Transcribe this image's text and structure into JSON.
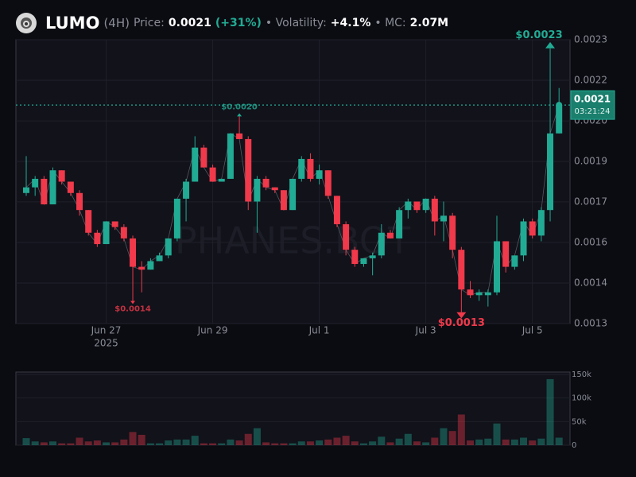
{
  "header": {
    "title": "LUMO",
    "timeframe": "(4H)",
    "price_label": "Price:",
    "price": "0.0021",
    "change": "(+31%)",
    "volatility_label": "• Volatility:",
    "volatility": "+4.1%",
    "mc_label": "• MC:",
    "mc": "2.07M"
  },
  "watermark": "PHANES.BOT",
  "chart_data": [
    {
      "type": "candlestick",
      "up_color": "#22ab94",
      "down_color": "#f0394a",
      "grid": true,
      "categories": [
        null,
        null,
        null,
        null,
        null,
        null,
        null,
        null,
        null,
        "Jun 27",
        null,
        null,
        null,
        null,
        null,
        null,
        null,
        null,
        null,
        null,
        null,
        "Jun 29",
        null,
        null,
        null,
        null,
        null,
        null,
        null,
        null,
        null,
        null,
        null,
        "Jul 1",
        null,
        null,
        null,
        null,
        null,
        null,
        null,
        null,
        null,
        null,
        null,
        "Jul 3",
        null,
        null,
        null,
        null,
        null,
        null,
        null,
        null,
        null,
        null,
        null,
        "Jul 5",
        null,
        null,
        null
      ],
      "year": "2025",
      "open": [
        0.00176,
        0.00178,
        0.00181,
        0.00172,
        0.00184,
        0.0018,
        0.00176,
        0.0017,
        0.00162,
        0.00158,
        0.00166,
        0.00164,
        0.0016,
        0.0015,
        0.00149,
        0.00152,
        0.00154,
        0.0016,
        0.00174,
        0.0018,
        0.00192,
        0.00185,
        0.0018,
        0.00181,
        0.00197,
        0.00195,
        0.00173,
        0.00181,
        0.00178,
        0.00177,
        0.0017,
        0.00181,
        0.00188,
        0.00181,
        0.00184,
        0.00175,
        0.00165,
        0.00156,
        0.00151,
        0.00153,
        0.00154,
        0.00162,
        0.0016,
        0.0017,
        0.00173,
        0.0017,
        0.00174,
        0.00166,
        0.00168,
        0.00156,
        0.00142,
        0.0014,
        0.0014,
        0.00141,
        0.00159,
        0.0015,
        0.00154,
        0.00166,
        0.00161,
        0.0017,
        0.00197
      ],
      "high": [
        0.00189,
        0.00182,
        0.00182,
        0.00185,
        0.00184,
        0.0018,
        0.00177,
        0.0017,
        0.00163,
        0.00166,
        0.00166,
        0.00165,
        0.00161,
        0.00152,
        0.00153,
        0.00155,
        0.0016,
        0.00174,
        0.00181,
        0.00196,
        0.00193,
        0.00186,
        0.00181,
        0.00197,
        0.00203,
        0.00196,
        0.00182,
        0.00182,
        0.00178,
        0.00177,
        0.00181,
        0.00189,
        0.0019,
        0.00186,
        0.00184,
        0.00175,
        0.00166,
        0.00157,
        0.00153,
        0.00155,
        0.00165,
        0.00163,
        0.00171,
        0.00174,
        0.00173,
        0.00174,
        0.00175,
        0.00173,
        0.00169,
        0.00157,
        0.00145,
        0.00142,
        0.00142,
        0.00168,
        0.00159,
        0.00154,
        0.00167,
        0.00167,
        0.00171,
        0.00227,
        0.00213
      ],
      "low": [
        0.00175,
        0.00175,
        0.00172,
        0.00172,
        0.00179,
        0.00175,
        0.00168,
        0.00161,
        0.00157,
        0.00158,
        0.00163,
        0.00159,
        0.00138,
        0.00141,
        0.00149,
        0.00152,
        0.00153,
        0.00159,
        0.00166,
        0.0018,
        0.00185,
        0.0018,
        0.0018,
        0.00181,
        0.00195,
        0.0017,
        0.00162,
        0.00177,
        0.00176,
        0.0017,
        0.0017,
        0.0018,
        0.0018,
        0.00179,
        0.00174,
        0.00164,
        0.00154,
        0.0015,
        0.0015,
        0.00147,
        0.00153,
        0.0016,
        0.0016,
        0.00167,
        0.00169,
        0.00169,
        0.00161,
        0.00159,
        0.00153,
        0.00134,
        0.00139,
        0.00138,
        0.00136,
        0.0014,
        0.00148,
        0.00149,
        0.00152,
        0.0016,
        0.00159,
        0.00166,
        0.00197
      ],
      "close": [
        0.00178,
        0.00181,
        0.00172,
        0.00184,
        0.0018,
        0.00176,
        0.0017,
        0.00162,
        0.00158,
        0.00166,
        0.00164,
        0.0016,
        0.0015,
        0.00149,
        0.00152,
        0.00154,
        0.0016,
        0.00174,
        0.0018,
        0.00192,
        0.00185,
        0.0018,
        0.00181,
        0.00197,
        0.00195,
        0.00173,
        0.00181,
        0.00178,
        0.00177,
        0.0017,
        0.00181,
        0.00188,
        0.00181,
        0.00184,
        0.00175,
        0.00165,
        0.00156,
        0.00151,
        0.00153,
        0.00154,
        0.00162,
        0.0016,
        0.0017,
        0.00173,
        0.0017,
        0.00174,
        0.00166,
        0.00168,
        0.00156,
        0.00142,
        0.0014,
        0.00141,
        0.00141,
        0.00159,
        0.0015,
        0.00154,
        0.00166,
        0.00161,
        0.0017,
        0.00197,
        0.00207
      ],
      "ylim": [
        0.0013,
        0.0023
      ],
      "yticks": [
        0.0013,
        {
          "value": 0.001443,
          "label": "0.0014"
        },
        {
          "value": 0.001586,
          "label": "0.0016"
        },
        {
          "value": 0.001729,
          "label": "0.0017"
        },
        {
          "value": 0.001871,
          "label": "0.0019"
        },
        {
          "value": 0.002014,
          "label": "0.0020"
        },
        {
          "value": 0.002157,
          "label": "0.0022"
        },
        0.0023
      ],
      "annotations": [
        {
          "label": "$0.0023",
          "value": 0.00227
        },
        {
          "label": "$0.0020",
          "value": 0.00203
        },
        {
          "label": "$0.0014",
          "value": 0.00138
        },
        {
          "label": "$0.0013",
          "value": 0.00134
        }
      ],
      "last_price": {
        "value": 0.00207,
        "label": "0.0021"
      },
      "countdown": "03:21:24"
    },
    {
      "type": "volume",
      "ylim": [
        0,
        155000
      ],
      "yticks": [
        0,
        {
          "value": 50000,
          "label": "50k"
        },
        {
          "value": 100000,
          "label": "100k"
        },
        {
          "value": 150000,
          "label": "150k"
        }
      ],
      "values": [
        15000,
        8000,
        6000,
        8000,
        4000,
        4000,
        16000,
        8000,
        10000,
        6000,
        6000,
        12000,
        28000,
        22000,
        4000,
        4000,
        10000,
        12000,
        12000,
        20000,
        4000,
        4000,
        4000,
        12000,
        10000,
        24000,
        36000,
        6000,
        4000,
        4000,
        4000,
        8000,
        8000,
        10000,
        12000,
        16000,
        20000,
        8000,
        4000,
        8000,
        18000,
        6000,
        14000,
        24000,
        8000,
        6000,
        16000,
        36000,
        30000,
        65000,
        10000,
        12000,
        14000,
        46000,
        12000,
        12000,
        16000,
        10000,
        14000,
        140000,
        16000
      ]
    }
  ]
}
